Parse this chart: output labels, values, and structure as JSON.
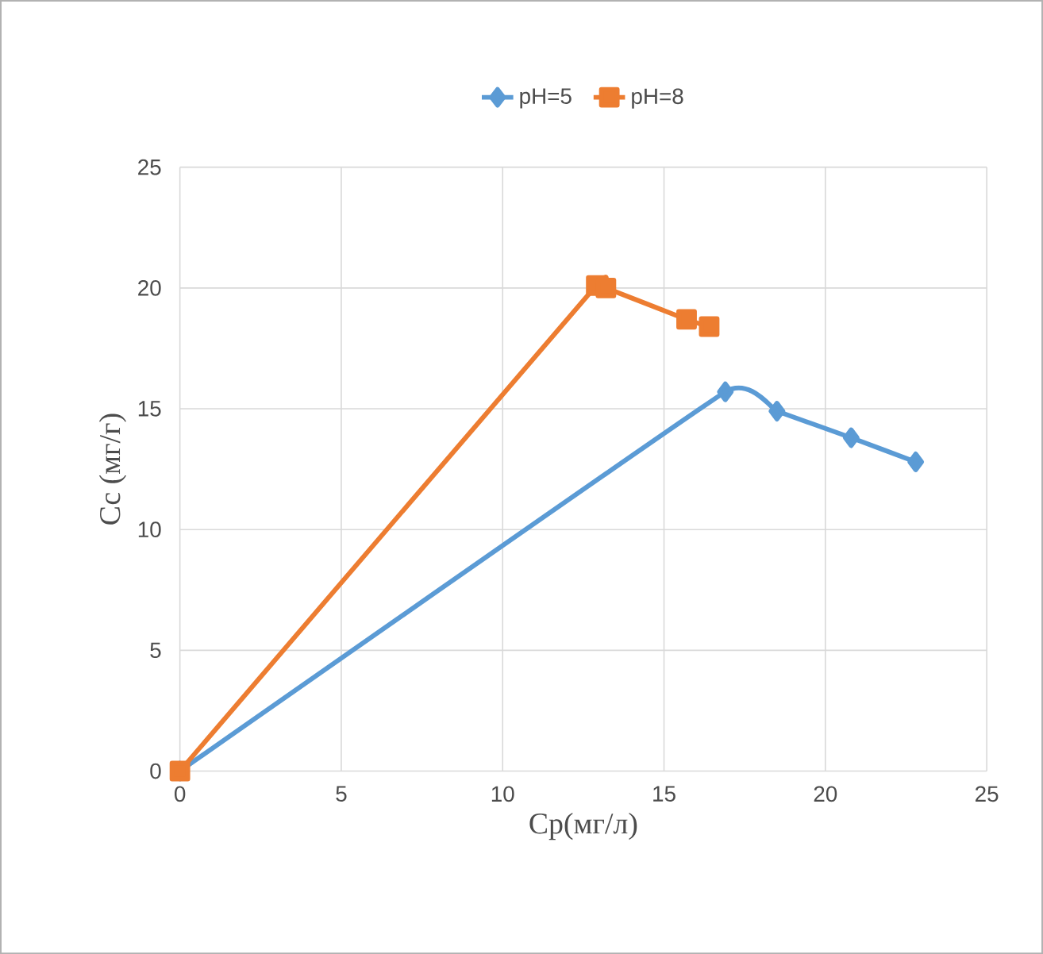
{
  "chart_data": {
    "type": "line",
    "xlabel": "Ср(мг/л)",
    "ylabel": "Сс (мг/г)",
    "xlim": [
      0,
      25
    ],
    "ylim": [
      0,
      25
    ],
    "xticks": [
      0,
      5,
      10,
      15,
      20,
      25
    ],
    "yticks": [
      0,
      5,
      10,
      15,
      20,
      25
    ],
    "grid": true,
    "legend": "top",
    "line_style": "solid",
    "series": [
      {
        "name": "pH=5",
        "color": "#5b9bd5",
        "marker": "diamond",
        "x": [
          0,
          16.9,
          18.5,
          20.8,
          22.8
        ],
        "values": [
          0,
          15.7,
          14.9,
          13.8,
          12.8
        ]
      },
      {
        "name": "pH=8",
        "color": "#ed7d31",
        "marker": "square",
        "x": [
          0,
          12.9,
          13.2,
          15.7,
          16.4
        ],
        "values": [
          0,
          20.1,
          20.0,
          18.7,
          18.4
        ]
      }
    ]
  }
}
